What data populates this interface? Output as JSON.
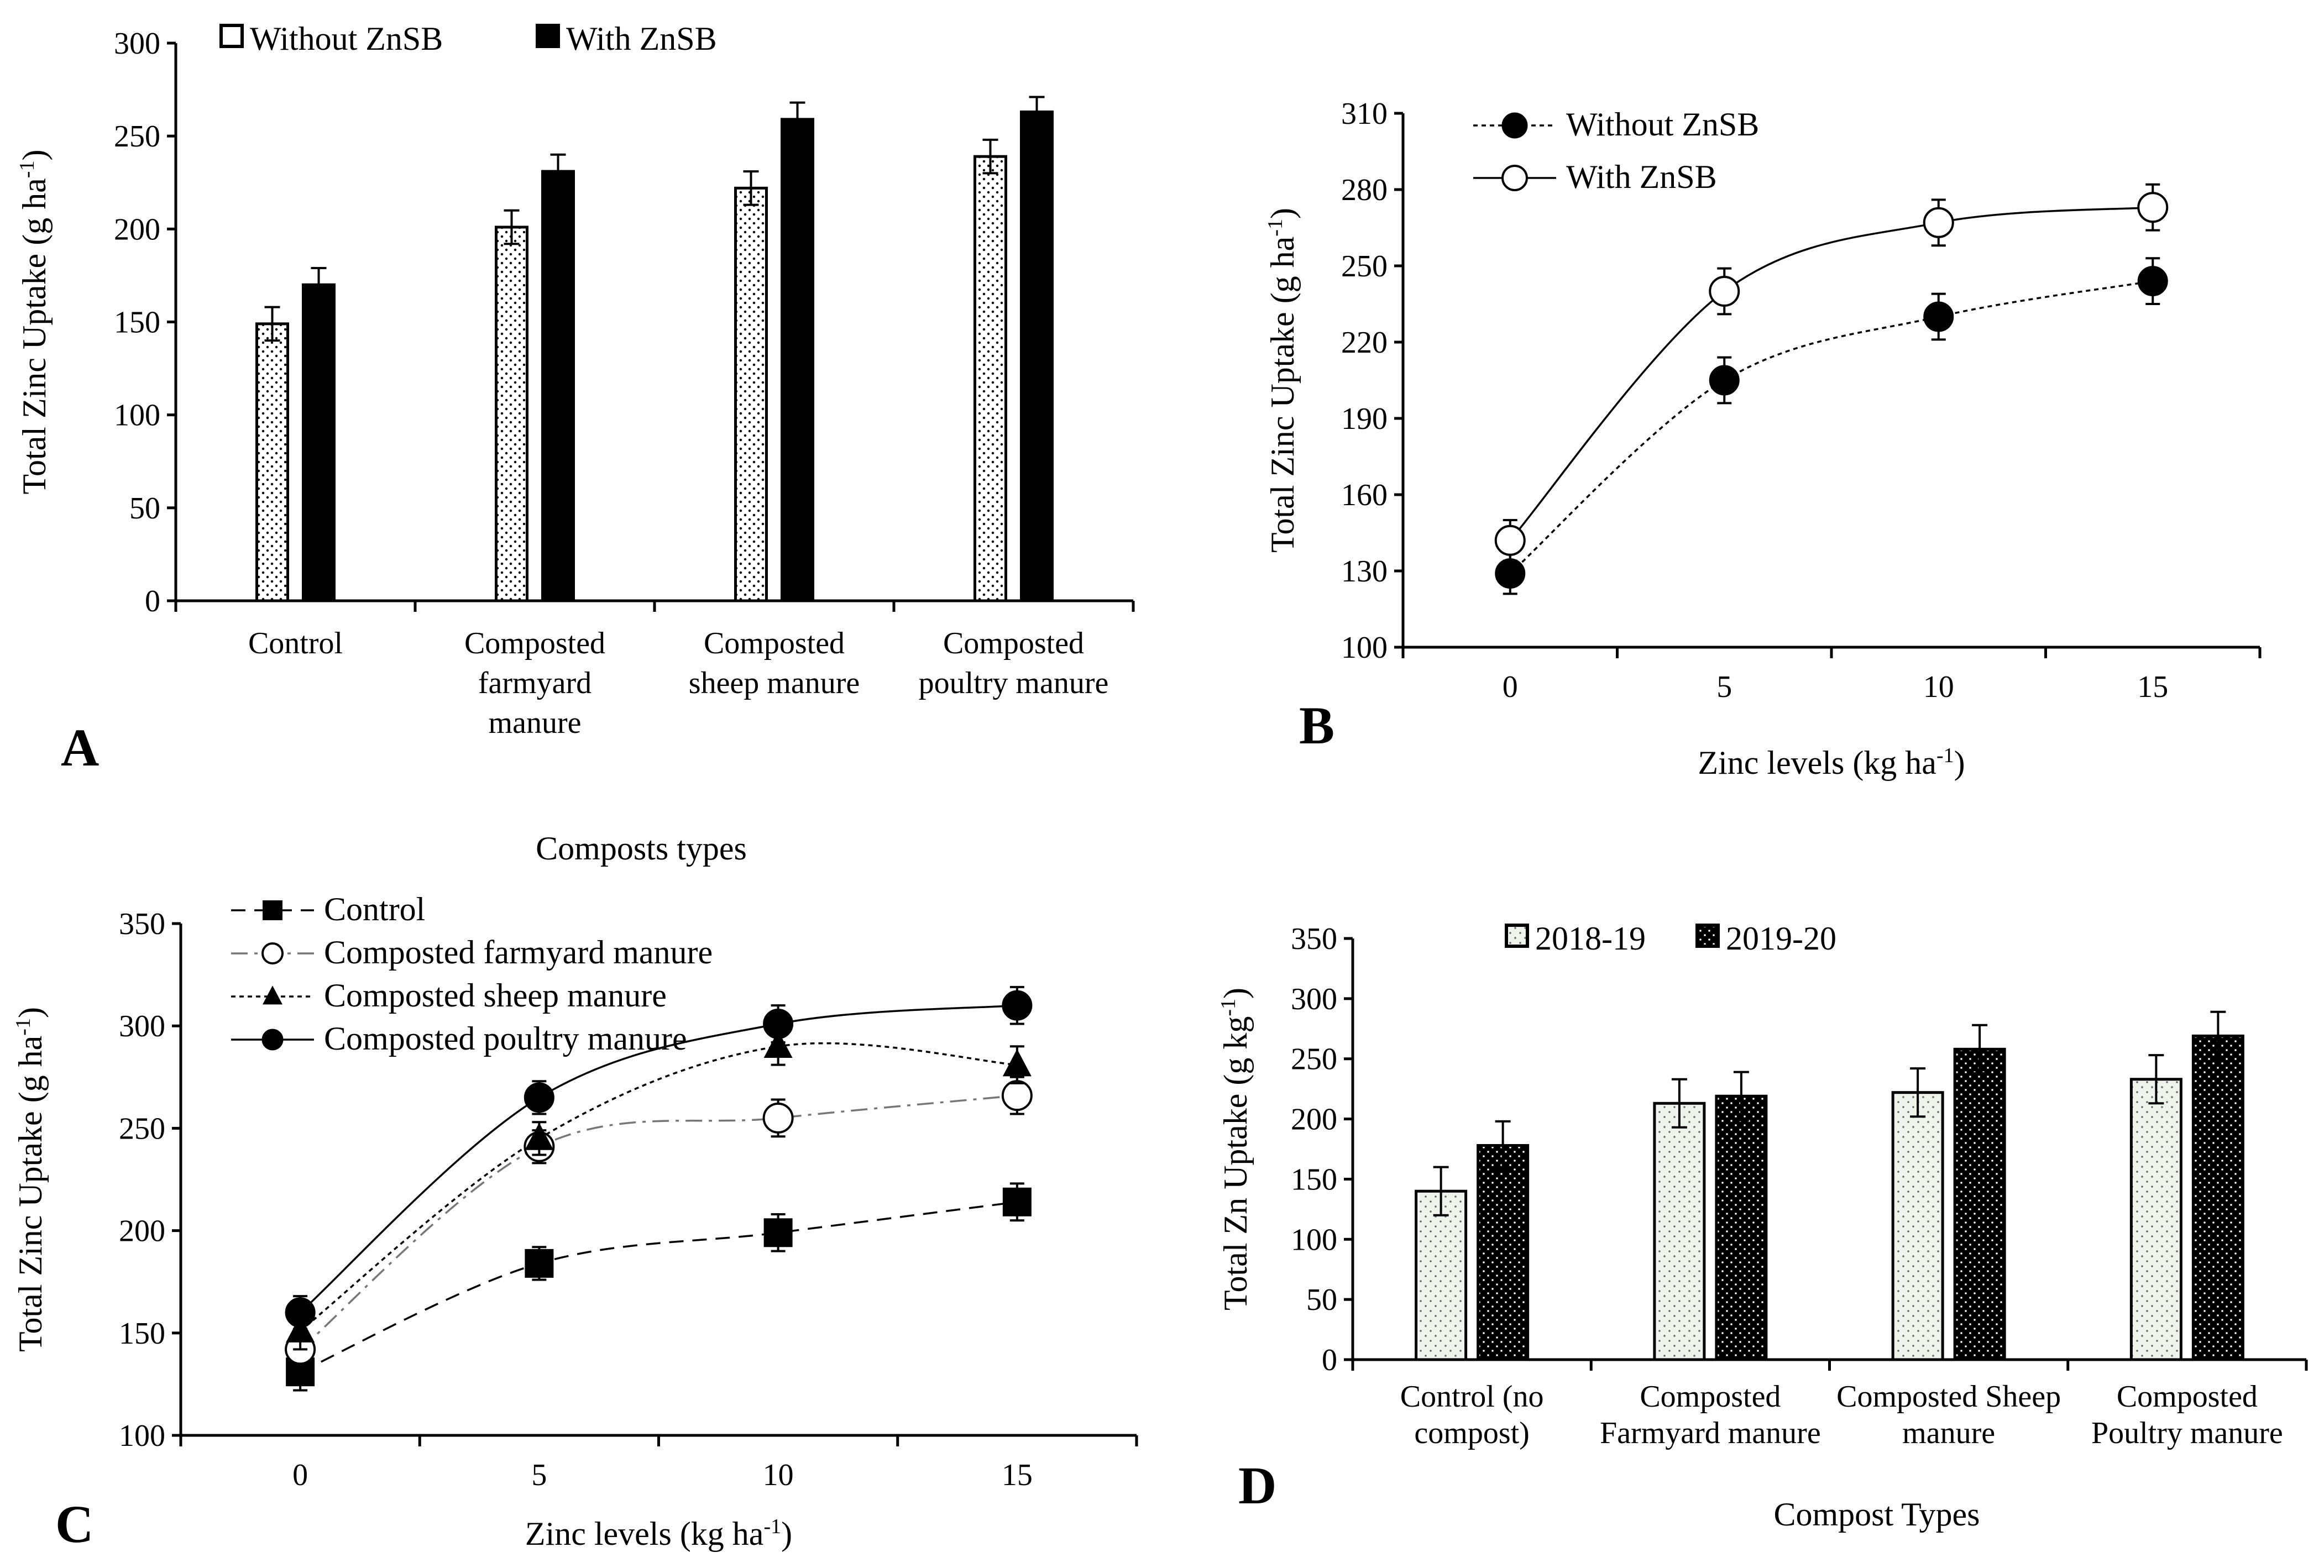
{
  "chart_data": [
    {
      "panel": "A",
      "type": "bar",
      "categories": [
        [
          "Control"
        ],
        [
          "Composted",
          "farmyard",
          "manure"
        ],
        [
          "Composted",
          "sheep manure"
        ],
        [
          "Composted",
          "poultry manure"
        ]
      ],
      "series": [
        {
          "name": "Without ZnSB",
          "style": "dotted",
          "values": [
            149,
            201,
            222,
            239
          ],
          "errors": [
            9,
            9,
            9,
            9
          ]
        },
        {
          "name": "With ZnSB",
          "style": "solid",
          "values": [
            170,
            231,
            259,
            263
          ],
          "errors": [
            9,
            9,
            9,
            8
          ]
        }
      ],
      "ylabel": "Total Zinc Uptake (g ha",
      "ylabel_sup": "-1",
      "ylabel_tail": ")",
      "xlabel": "Composts types",
      "ylim": [
        0,
        300
      ],
      "yticks": [
        0,
        50,
        100,
        150,
        200,
        250,
        300
      ]
    },
    {
      "panel": "B",
      "type": "line",
      "x": [
        0,
        5,
        10,
        15
      ],
      "series": [
        {
          "name": "Without ZnSB",
          "marker": "filled-circle",
          "dash": "dotted",
          "values": [
            129,
            205,
            230,
            244
          ],
          "errors": [
            8,
            9,
            9,
            9
          ]
        },
        {
          "name": "With ZnSB",
          "marker": "open-circle",
          "dash": "solid",
          "values": [
            142,
            240,
            267,
            273
          ],
          "errors": [
            8,
            9,
            9,
            9
          ]
        }
      ],
      "ylabel": "Total Zinc Uptake (g ha",
      "ylabel_sup": "-1",
      "ylabel_tail": ")",
      "xlabel": "Zinc levels (kg ha",
      "xlabel_sup": "-1",
      "xlabel_tail": ")",
      "ylim": [
        100,
        310
      ],
      "yticks": [
        100,
        130,
        160,
        190,
        220,
        250,
        280,
        310
      ],
      "xticks": [
        0,
        5,
        10,
        15
      ]
    },
    {
      "panel": "C",
      "type": "line",
      "x": [
        0,
        5,
        10,
        15
      ],
      "series": [
        {
          "name": "Control",
          "marker": "filled-square",
          "dash": "dashed",
          "values": [
            131,
            184,
            199,
            214
          ],
          "errors": [
            9,
            8,
            9,
            9
          ]
        },
        {
          "name": "Composted farmyard manure",
          "marker": "open-circle",
          "dash": "dashdot",
          "values": [
            142,
            241,
            255,
            266
          ],
          "errors": [
            9,
            8,
            9,
            9
          ]
        },
        {
          "name": "Composted sheep manure",
          "marker": "filled-triangle",
          "dash": "dotted",
          "values": [
            151,
            245,
            290,
            281
          ],
          "errors": [
            9,
            8,
            9,
            9
          ]
        },
        {
          "name": "Composted poultry manure",
          "marker": "filled-circle",
          "dash": "solid",
          "values": [
            160,
            265,
            301,
            310
          ],
          "errors": [
            8,
            8,
            9,
            9
          ]
        }
      ],
      "ylabel": "Total Zinc Uptake (g ha",
      "ylabel_sup": "-1",
      "ylabel_tail": ")",
      "xlabel": "Zinc levels (kg ha",
      "xlabel_sup": "-1",
      "xlabel_tail": ")",
      "ylim": [
        100,
        350
      ],
      "yticks": [
        100,
        150,
        200,
        250,
        300,
        350
      ],
      "xticks": [
        0,
        5,
        10,
        15
      ]
    },
    {
      "panel": "D",
      "type": "bar",
      "categories": [
        [
          "Control (no",
          "compost)"
        ],
        [
          "Composted",
          "Farmyard manure"
        ],
        [
          "Composted Sheep",
          "manure"
        ],
        [
          "Composted",
          "Poultry manure"
        ]
      ],
      "series": [
        {
          "name": "2018-19",
          "style": "light-dotted",
          "values": [
            140,
            213,
            222,
            233
          ],
          "errors": [
            20,
            20,
            20,
            20
          ]
        },
        {
          "name": "2019-20",
          "style": "dark-dotted",
          "values": [
            178,
            219,
            258,
            269
          ],
          "errors": [
            20,
            20,
            20,
            20
          ]
        }
      ],
      "ylabel": "Total Zn Uptake (g kg",
      "ylabel_sup": "-1",
      "ylabel_tail": ")",
      "xlabel": "Compost Types",
      "ylim": [
        0,
        350
      ],
      "yticks": [
        0,
        50,
        100,
        150,
        200,
        250,
        300,
        350
      ]
    }
  ]
}
